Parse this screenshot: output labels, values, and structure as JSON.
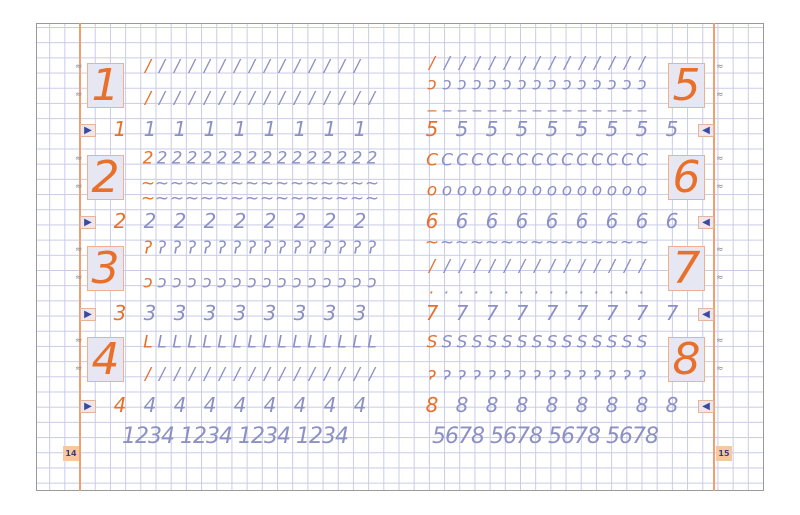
{
  "page_numbers": {
    "left": "14",
    "right": "15"
  },
  "colors": {
    "accent": "#e8702a",
    "tracing": "#8c90c4",
    "grid": "#c9cbe6",
    "box": "#e7e7f3"
  },
  "icons": {
    "row_marker": "arrow-right-icon",
    "row_marker_right": "arrow-left-icon",
    "binding": "spiral-coil-icon"
  },
  "left_page": {
    "model_digits": [
      "1",
      "2",
      "3",
      "4"
    ],
    "rows": [
      {
        "lead": "/",
        "glyph": "/",
        "count": 14,
        "type": "dense"
      },
      {
        "lead": "/",
        "glyph": "/",
        "count": 15,
        "type": "dense"
      },
      {
        "lead": "1",
        "glyph": "1",
        "count": 8,
        "type": "spaced"
      },
      {
        "lead": "2",
        "glyph": "2",
        "count": 15,
        "type": "dense"
      },
      {
        "lead": "~",
        "glyph": "~",
        "count": 15,
        "type": "dense"
      },
      {
        "lead": "~",
        "glyph": "~",
        "count": 15,
        "type": "dense"
      },
      {
        "lead": "2",
        "glyph": "2",
        "count": 8,
        "type": "spaced"
      },
      {
        "lead": "ʔ",
        "glyph": "ʔ",
        "count": 15,
        "type": "dense"
      },
      {
        "lead": "ɔ",
        "glyph": "ɔ",
        "count": 15,
        "type": "dense"
      },
      {
        "lead": "3",
        "glyph": "3",
        "count": 8,
        "type": "spaced"
      },
      {
        "lead": "L",
        "glyph": "L",
        "count": 15,
        "type": "dense"
      },
      {
        "lead": "/",
        "glyph": "/",
        "count": 15,
        "type": "dense"
      },
      {
        "lead": "4",
        "glyph": "4",
        "count": 8,
        "type": "spaced"
      }
    ],
    "review": "1234 1234 1234 1234"
  },
  "right_page": {
    "model_digits": [
      "5",
      "6",
      "7",
      "8"
    ],
    "rows": [
      {
        "lead": "/",
        "glyph": "/",
        "count": 14,
        "type": "dense"
      },
      {
        "lead": "ɔ",
        "glyph": "ɔ",
        "count": 14,
        "type": "dense"
      },
      {
        "lead": "_",
        "glyph": "_",
        "count": 14,
        "type": "dense"
      },
      {
        "lead": "5",
        "glyph": "5",
        "count": 8,
        "type": "spaced"
      },
      {
        "lead": "C",
        "glyph": "C",
        "count": 14,
        "type": "dense"
      },
      {
        "lead": "o",
        "glyph": "o",
        "count": 14,
        "type": "dense"
      },
      {
        "lead": "6",
        "glyph": "6",
        "count": 8,
        "type": "spaced"
      },
      {
        "lead": "~",
        "glyph": "~",
        "count": 14,
        "type": "dense"
      },
      {
        "lead": "/",
        "glyph": "/",
        "count": 14,
        "type": "dense"
      },
      {
        "lead": ".",
        "glyph": ".",
        "count": 14,
        "type": "dense"
      },
      {
        "lead": "7",
        "glyph": "7",
        "count": 8,
        "type": "spaced"
      },
      {
        "lead": "S",
        "glyph": "S",
        "count": 14,
        "type": "dense"
      },
      {
        "lead": "ɂ",
        "glyph": "ɂ",
        "count": 14,
        "type": "dense"
      },
      {
        "lead": "8",
        "glyph": "8",
        "count": 8,
        "type": "spaced"
      }
    ],
    "review": "5678 5678 5678 5678"
  }
}
